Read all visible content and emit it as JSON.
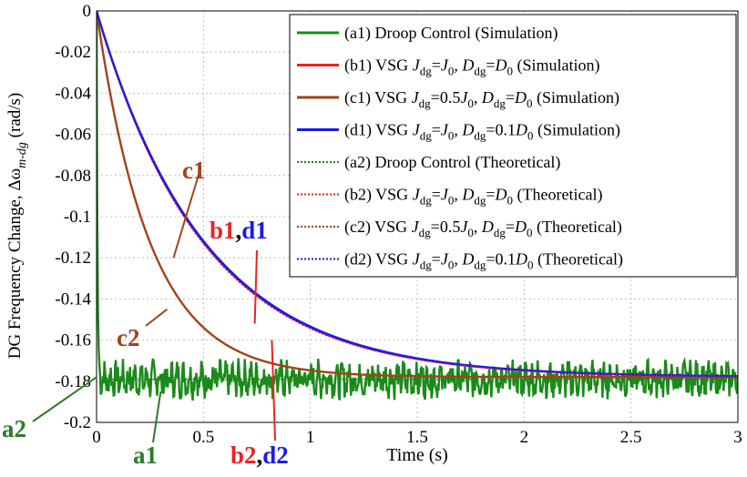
{
  "chart_data": {
    "type": "line",
    "xlabel": "Time (s)",
    "ylabel_parts": [
      "DG Frequency Change, Δω",
      "m-dg",
      " (rad/s)"
    ],
    "xlim": [
      0,
      3
    ],
    "ylim": [
      -0.2,
      0
    ],
    "xticks": [
      0,
      0.5,
      1,
      1.5,
      2,
      2.5,
      3
    ],
    "xtick_labels": [
      "0",
      "0.5",
      "1",
      "1.5",
      "2",
      "2.5",
      "3"
    ],
    "yticks": [
      0,
      -0.02,
      -0.04,
      -0.06,
      -0.08,
      -0.1,
      -0.12,
      -0.14,
      -0.16,
      -0.18,
      -0.2
    ],
    "ytick_labels": [
      "0",
      "-0.02",
      "-0.04",
      "-0.06",
      "-0.08",
      "-0.1",
      "-0.12",
      "-0.14",
      "-0.16",
      "-0.18",
      "-0.2"
    ],
    "grid": true,
    "legend_position": "top-right",
    "legend": [
      {
        "prefix": "(a1) ",
        "parts": [
          [
            "t",
            "Droop Control (Simulation)"
          ]
        ],
        "color": "#1a8a1a",
        "dash": false
      },
      {
        "prefix": "(b1) ",
        "parts": [
          [
            "t",
            "VSG "
          ],
          [
            "i",
            "J"
          ],
          [
            "sub",
            "dg"
          ],
          [
            "t",
            "="
          ],
          [
            "i",
            "J"
          ],
          [
            "sub",
            "0"
          ],
          [
            "t",
            ", "
          ],
          [
            "i",
            "D"
          ],
          [
            "sub",
            "dg"
          ],
          [
            "t",
            "="
          ],
          [
            "i",
            "D"
          ],
          [
            "sub",
            "0"
          ],
          [
            "t",
            " (Simulation)"
          ]
        ],
        "color": "#ee2222",
        "dash": false
      },
      {
        "prefix": "(c1) ",
        "parts": [
          [
            "t",
            "VSG "
          ],
          [
            "i",
            "J"
          ],
          [
            "sub",
            "dg"
          ],
          [
            "t",
            "=0.5"
          ],
          [
            "i",
            "J"
          ],
          [
            "sub",
            "0"
          ],
          [
            "t",
            ", "
          ],
          [
            "i",
            "D"
          ],
          [
            "sub",
            "dg"
          ],
          [
            "t",
            "="
          ],
          [
            "i",
            "D"
          ],
          [
            "sub",
            "0"
          ],
          [
            "t",
            " (Simulation)"
          ]
        ],
        "color": "#a0441a",
        "dash": false
      },
      {
        "prefix": "(d1) ",
        "parts": [
          [
            "t",
            "VSG "
          ],
          [
            "i",
            "J"
          ],
          [
            "sub",
            "dg"
          ],
          [
            "t",
            "="
          ],
          [
            "i",
            "J"
          ],
          [
            "sub",
            "0"
          ],
          [
            "t",
            ", "
          ],
          [
            "i",
            "D"
          ],
          [
            "sub",
            "dg"
          ],
          [
            "t",
            "=0.1"
          ],
          [
            "i",
            "D"
          ],
          [
            "sub",
            "0"
          ],
          [
            "t",
            " (Simulation)"
          ]
        ],
        "color": "#1a1aee",
        "dash": false
      },
      {
        "prefix": "(a2) ",
        "parts": [
          [
            "t",
            "Droop Control (Theoretical)"
          ]
        ],
        "color": "#1a8a1a",
        "dash": true
      },
      {
        "prefix": "(b2) ",
        "parts": [
          [
            "t",
            "VSG "
          ],
          [
            "i",
            "J"
          ],
          [
            "sub",
            "dg"
          ],
          [
            "t",
            "="
          ],
          [
            "i",
            "J"
          ],
          [
            "sub",
            "0"
          ],
          [
            "t",
            ", "
          ],
          [
            "i",
            "D"
          ],
          [
            "sub",
            "dg"
          ],
          [
            "t",
            "="
          ],
          [
            "i",
            "D"
          ],
          [
            "sub",
            "0"
          ],
          [
            "t",
            " (Theoretical)"
          ]
        ],
        "color": "#ee2222",
        "dash": true
      },
      {
        "prefix": "(c2) ",
        "parts": [
          [
            "t",
            "VSG "
          ],
          [
            "i",
            "J"
          ],
          [
            "sub",
            "dg"
          ],
          [
            "t",
            "=0.5"
          ],
          [
            "i",
            "J"
          ],
          [
            "sub",
            "0"
          ],
          [
            "t",
            ", "
          ],
          [
            "i",
            "D"
          ],
          [
            "sub",
            "dg"
          ],
          [
            "t",
            "="
          ],
          [
            "i",
            "D"
          ],
          [
            "sub",
            "0"
          ],
          [
            "t",
            " (Theoretical)"
          ]
        ],
        "color": "#a0441a",
        "dash": true
      },
      {
        "prefix": "(d2) ",
        "parts": [
          [
            "t",
            "VSG "
          ],
          [
            "i",
            "J"
          ],
          [
            "sub",
            "dg"
          ],
          [
            "t",
            "="
          ],
          [
            "i",
            "J"
          ],
          [
            "sub",
            "0"
          ],
          [
            "t",
            ", "
          ],
          [
            "i",
            "D"
          ],
          [
            "sub",
            "dg"
          ],
          [
            "t",
            "=0.1"
          ],
          [
            "i",
            "D"
          ],
          [
            "sub",
            "0"
          ],
          [
            "t",
            " (Theoretical)"
          ]
        ],
        "color": "#1a1aee",
        "dash": true
      }
    ],
    "series": [
      {
        "id": "a1",
        "kind": "droop-sim",
        "color": "#1a8a1a",
        "dash": false,
        "steady": -0.179,
        "tau": 0.004,
        "ripple": 0.0065
      },
      {
        "id": "a2",
        "kind": "droop-theory",
        "color": "#1a8a1a",
        "dash": true,
        "steady": -0.179,
        "tau": 0.004
      },
      {
        "id": "c1",
        "kind": "exp",
        "color": "#a0441a",
        "dash": false,
        "steady": -0.178,
        "tau": 0.25
      },
      {
        "id": "c2",
        "kind": "exp",
        "color": "#a0441a",
        "dash": true,
        "steady": -0.178,
        "tau": 0.25
      },
      {
        "id": "b1",
        "kind": "exp",
        "color": "#ee2222",
        "dash": false,
        "steady": -0.178,
        "tau": 0.5
      },
      {
        "id": "d1",
        "kind": "exp",
        "color": "#1a1aee",
        "dash": false,
        "steady": -0.178,
        "tau": 0.505
      },
      {
        "id": "b2",
        "kind": "exp",
        "color": "#ee2222",
        "dash": true,
        "steady": -0.178,
        "tau": 0.495
      },
      {
        "id": "d2",
        "kind": "exp",
        "color": "#1a1aee",
        "dash": true,
        "steady": -0.178,
        "tau": 0.5
      }
    ],
    "annotations": [
      {
        "id": "c1",
        "parts": [
          {
            "text": "c1",
            "color": "#a0441a"
          }
        ],
        "arrow_end": [
          0.36,
          -0.12
        ]
      },
      {
        "id": "c2",
        "parts": [
          {
            "text": "c2",
            "color": "#a0441a"
          }
        ],
        "arrow_end": [
          0.33,
          -0.145
        ]
      },
      {
        "id": "b1d1",
        "parts": [
          {
            "text": "b1",
            "color": "#ee2222"
          },
          {
            "text": ",",
            "color": "#000000"
          },
          {
            "text": "d1",
            "color": "#1a1aee"
          }
        ],
        "arrow_end": [
          0.74,
          -0.152
        ]
      },
      {
        "id": "b2d2",
        "parts": [
          {
            "text": "b2",
            "color": "#ee2222"
          },
          {
            "text": ",",
            "color": "#000000"
          },
          {
            "text": "d2",
            "color": "#1a1aee"
          }
        ],
        "arrow_end": [
          0.82,
          -0.16
        ]
      },
      {
        "id": "a1",
        "parts": [
          {
            "text": "a1",
            "color": "#2d7a2d"
          }
        ],
        "arrow_end": [
          0.3,
          -0.185
        ]
      },
      {
        "id": "a2",
        "parts": [
          {
            "text": "a2",
            "color": "#2d7a2d"
          }
        ],
        "arrow_end": [
          0.0,
          -0.178
        ]
      }
    ]
  }
}
